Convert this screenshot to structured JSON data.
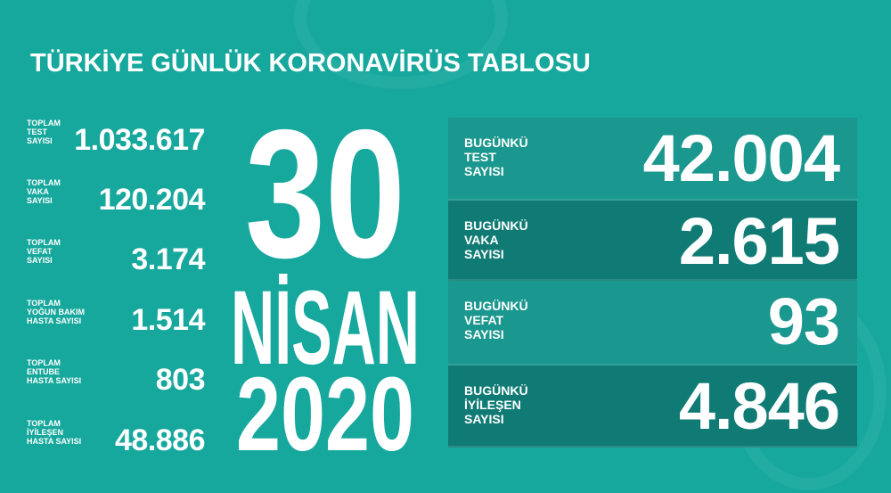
{
  "title": "TÜRKİYE GÜNLÜK KORONAVİRÜS TABLOSU",
  "date": {
    "day": "30",
    "month": "NİSAN",
    "year": "2020"
  },
  "totals": [
    {
      "label": [
        "TOPLAM",
        "TEST",
        "SAYISI"
      ],
      "value": "1.033.617"
    },
    {
      "label": [
        "TOPLAM",
        "VAKA",
        "SAYISI"
      ],
      "value": "120.204"
    },
    {
      "label": [
        "TOPLAM",
        "VEFAT",
        "SAYISI"
      ],
      "value": "3.174"
    },
    {
      "label": [
        "TOPLAM",
        "YOĞUN BAKIM",
        "HASTA SAYISI"
      ],
      "value": "1.514"
    },
    {
      "label": [
        "TOPLAM",
        "ENTUBE",
        "HASTA SAYISI"
      ],
      "value": "803"
    },
    {
      "label": [
        "TOPLAM",
        "İYİLEŞEN",
        "HASTA SAYISI"
      ],
      "value": "48.886"
    }
  ],
  "today": [
    {
      "label": [
        "BUGÜNKÜ",
        "TEST",
        "SAYISI"
      ],
      "value": "42.004"
    },
    {
      "label": [
        "BUGÜNKÜ",
        "VAKA",
        "SAYISI"
      ],
      "value": "2.615"
    },
    {
      "label": [
        "BUGÜNKÜ",
        "VEFAT",
        "SAYISI"
      ],
      "value": "93"
    },
    {
      "label": [
        "BUGÜNKÜ",
        "İYİLEŞEN",
        "SAYISI"
      ],
      "value": "4.846"
    }
  ],
  "colors": {
    "background": "#17a89d",
    "panel_light": "#1a978e",
    "panel_dark": "#0f7b74",
    "text": "#ffffff"
  }
}
